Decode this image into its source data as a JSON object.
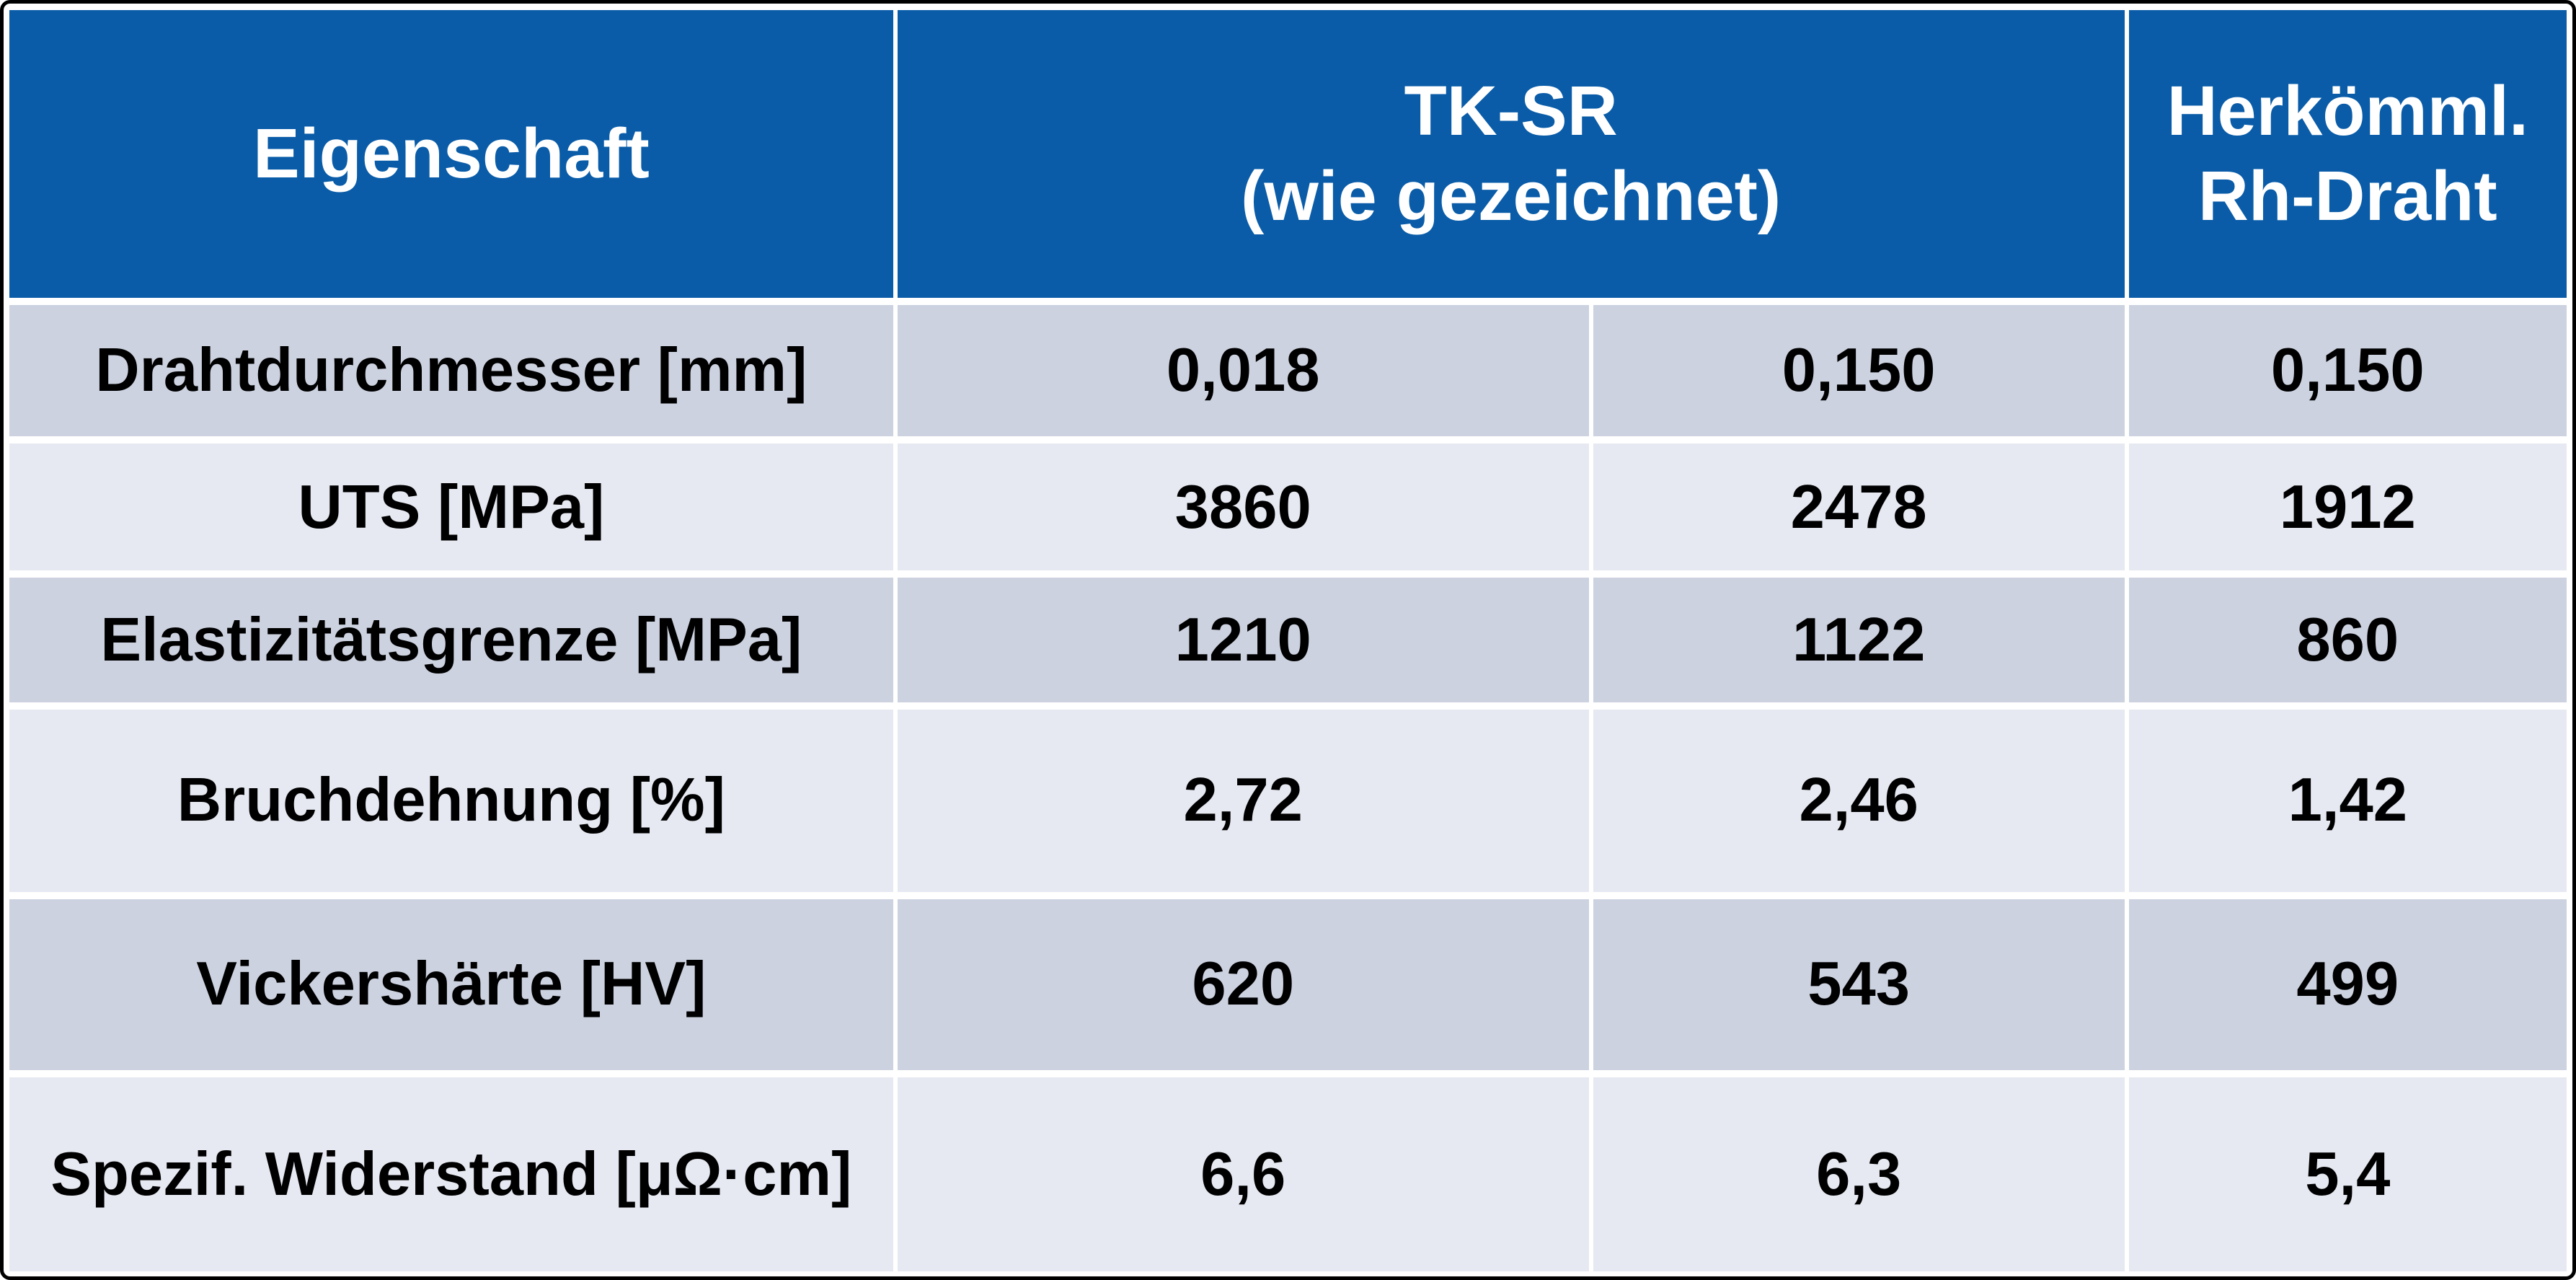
{
  "colors": {
    "header_background": "#0a5ca8",
    "header_text": "#ffffff",
    "row_dark_background": "#ccd2e0",
    "row_light_background": "#e6e9f2",
    "body_text": "#000000",
    "divider": "#ffffff",
    "outer_border": "#000000"
  },
  "chart_data": {
    "type": "table",
    "header": {
      "property_column": "Eigenschaft",
      "tksr_colspan": 2,
      "tksr_line1": "TK-SR",
      "tksr_line2": "(wie gezeichnet)",
      "conventional_line1": "Herkömml.",
      "conventional_line2": "Rh-Draht"
    },
    "rows": [
      {
        "property": "Drahtdurchmesser [mm]",
        "values": [
          "0,018",
          "0,150",
          "0,150"
        ]
      },
      {
        "property": "UTS [MPa]",
        "values": [
          "3860",
          "2478",
          "1912"
        ]
      },
      {
        "property": "Elastizitätsgrenze [MPa]",
        "values": [
          "1210",
          "1122",
          "860"
        ]
      },
      {
        "property": "Bruchdehnung [%]",
        "values": [
          "2,72",
          "2,46",
          "1,42"
        ]
      },
      {
        "property": "Vickershärte [HV]",
        "values": [
          "620",
          "543",
          "499"
        ]
      },
      {
        "property": "Spezif. Widerstand [μΩ·cm]",
        "values": [
          "6,6",
          "6,3",
          "5,4"
        ]
      }
    ]
  }
}
